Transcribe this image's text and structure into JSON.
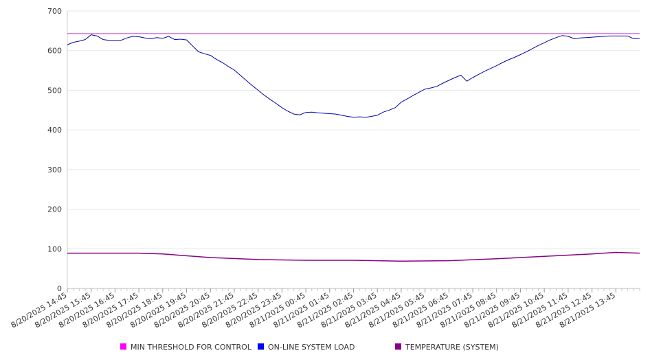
{
  "chart_data": {
    "type": "line",
    "title": "",
    "xlabel": "",
    "ylabel": "",
    "ylim": [
      0,
      700
    ],
    "yticks": [
      0,
      100,
      200,
      300,
      400,
      500,
      600,
      700
    ],
    "grid": true,
    "legend_position": "bottom",
    "x_tick_labels": [
      "8/20/2025 14:45",
      "8/20/2025 15:45",
      "8/20/2025 16:45",
      "8/20/2025 17:45",
      "8/20/2025 18:45",
      "8/20/2025 19:45",
      "8/20/2025 20:45",
      "8/20/2025 21:45",
      "8/20/2025 22:45",
      "8/20/2025 23:45",
      "8/21/2025 00:45",
      "8/21/2025 01:45",
      "8/21/2025 02:45",
      "8/21/2025 03:45",
      "8/21/2025 04:45",
      "8/21/2025 05:45",
      "8/21/2025 06:45",
      "8/21/2025 07:45",
      "8/21/2025 08:45",
      "8/21/2025 09:45",
      "8/21/2025 10:45",
      "8/21/2025 11:45",
      "8/21/2025 12:45",
      "8/21/2025 13:45"
    ],
    "x_end": "8/21/2025 14:45",
    "series": [
      {
        "name": "MIN THRESHOLD FOR CONTROL",
        "color": "#cc33cc",
        "legend_color": "#ff00ff",
        "x": [
          "8/20/2025 14:45",
          "8/21/2025 14:45"
        ],
        "values": [
          643,
          643
        ]
      },
      {
        "name": "ON-LINE SYSTEM LOAD",
        "color": "#0000aa",
        "legend_color": "#0000ff",
        "x": [
          "8/20/2025 14:45",
          "8/20/2025 15:00",
          "8/20/2025 15:15",
          "8/20/2025 15:30",
          "8/20/2025 15:45",
          "8/20/2025 16:00",
          "8/20/2025 16:15",
          "8/20/2025 16:30",
          "8/20/2025 16:45",
          "8/20/2025 17:00",
          "8/20/2025 17:15",
          "8/20/2025 17:30",
          "8/20/2025 17:45",
          "8/20/2025 18:00",
          "8/20/2025 18:15",
          "8/20/2025 18:30",
          "8/20/2025 18:45",
          "8/20/2025 19:00",
          "8/20/2025 19:15",
          "8/20/2025 19:30",
          "8/20/2025 19:45",
          "8/20/2025 20:00",
          "8/20/2025 20:15",
          "8/20/2025 20:30",
          "8/20/2025 20:45",
          "8/20/2025 21:00",
          "8/20/2025 21:15",
          "8/20/2025 21:30",
          "8/20/2025 21:45",
          "8/20/2025 22:00",
          "8/20/2025 22:15",
          "8/20/2025 22:30",
          "8/20/2025 22:45",
          "8/20/2025 23:00",
          "8/20/2025 23:15",
          "8/20/2025 23:30",
          "8/20/2025 23:45",
          "8/21/2025 00:00",
          "8/21/2025 00:15",
          "8/21/2025 00:30",
          "8/21/2025 00:45",
          "8/21/2025 01:00",
          "8/21/2025 01:15",
          "8/21/2025 01:30",
          "8/21/2025 01:45",
          "8/21/2025 02:00",
          "8/21/2025 02:15",
          "8/21/2025 02:30",
          "8/21/2025 02:45",
          "8/21/2025 03:00",
          "8/21/2025 03:15",
          "8/21/2025 03:30",
          "8/21/2025 03:45",
          "8/21/2025 04:00",
          "8/21/2025 04:15",
          "8/21/2025 04:30",
          "8/21/2025 04:45",
          "8/21/2025 05:00",
          "8/21/2025 05:15",
          "8/21/2025 05:30",
          "8/21/2025 05:45",
          "8/21/2025 06:00",
          "8/21/2025 06:15",
          "8/21/2025 06:30",
          "8/21/2025 06:45",
          "8/21/2025 07:00",
          "8/21/2025 07:15",
          "8/21/2025 07:30",
          "8/21/2025 07:45",
          "8/21/2025 08:00",
          "8/21/2025 08:15",
          "8/21/2025 08:30",
          "8/21/2025 08:45",
          "8/21/2025 09:00",
          "8/21/2025 09:15",
          "8/21/2025 09:30",
          "8/21/2025 09:45",
          "8/21/2025 10:00",
          "8/21/2025 10:15",
          "8/21/2025 10:30",
          "8/21/2025 10:45",
          "8/21/2025 11:00",
          "8/21/2025 11:15",
          "8/21/2025 11:30",
          "8/21/2025 11:45",
          "8/21/2025 12:00",
          "8/21/2025 12:15",
          "8/21/2025 12:30",
          "8/21/2025 12:45",
          "8/21/2025 13:00",
          "8/21/2025 13:15",
          "8/21/2025 13:30",
          "8/21/2025 13:45",
          "8/21/2025 14:00",
          "8/21/2025 14:15",
          "8/21/2025 14:30",
          "8/21/2025 14:45"
        ],
        "values": [
          615,
          621,
          624,
          628,
          640,
          637,
          628,
          626,
          626,
          626,
          632,
          636,
          635,
          632,
          630,
          633,
          631,
          636,
          628,
          629,
          627,
          612,
          597,
          592,
          588,
          578,
          570,
          560,
          551,
          538,
          525,
          512,
          500,
          488,
          477,
          467,
          456,
          447,
          440,
          438,
          444,
          445,
          443,
          442,
          441,
          440,
          437,
          434,
          432,
          433,
          432,
          434,
          437,
          445,
          450,
          456,
          470,
          478,
          487,
          495,
          503,
          506,
          510,
          518,
          525,
          532,
          538,
          523,
          532,
          540,
          548,
          555,
          562,
          570,
          577,
          583,
          590,
          597,
          605,
          613,
          620,
          627,
          633,
          638,
          636,
          630,
          632,
          633,
          634,
          635,
          636,
          637,
          637,
          637,
          637,
          630,
          631
        ]
      },
      {
        "name": "TEMPERATURE (SYSTEM)",
        "color": "#880088",
        "legend_color": "#880088",
        "x": [
          "8/20/2025 14:45",
          "8/20/2025 17:45",
          "8/20/2025 18:45",
          "8/20/2025 20:45",
          "8/20/2025 22:45",
          "8/21/2025 00:45",
          "8/21/2025 02:45",
          "8/21/2025 04:45",
          "8/21/2025 06:45",
          "8/21/2025 08:45",
          "8/21/2025 10:45",
          "8/21/2025 12:45",
          "8/21/2025 13:45",
          "8/21/2025 14:45"
        ],
        "values": [
          89,
          89,
          87,
          78,
          73,
          71,
          71,
          69,
          70,
          75,
          81,
          87,
          91,
          89
        ]
      }
    ]
  }
}
